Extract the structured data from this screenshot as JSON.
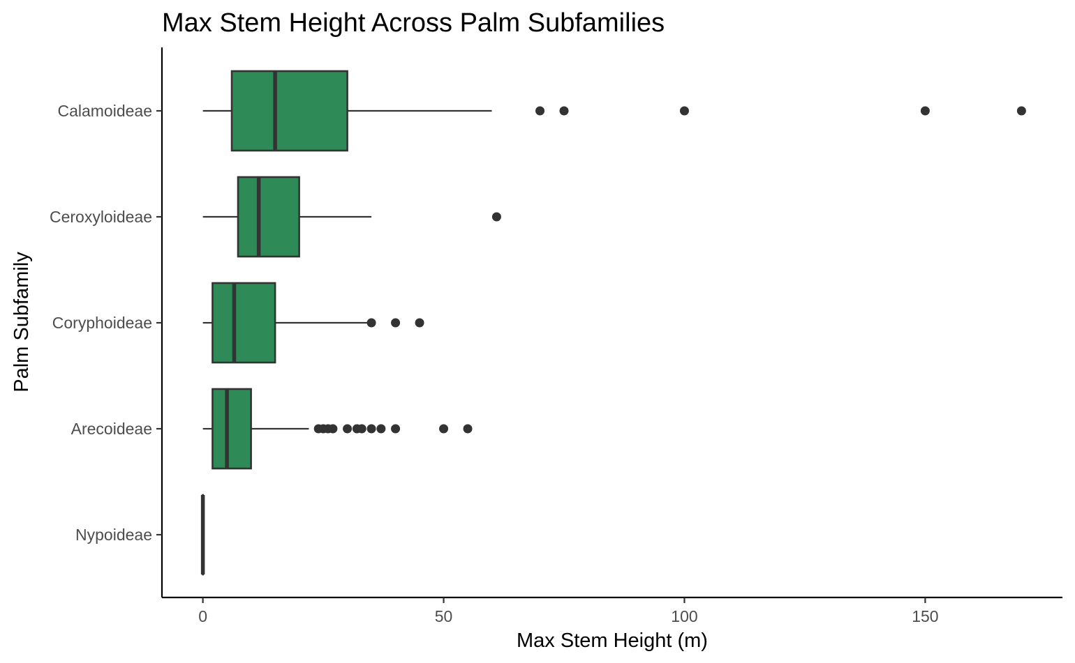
{
  "chart_data": {
    "type": "boxplot",
    "orientation": "horizontal",
    "title": "Max Stem Height Across Palm Subfamilies",
    "xlabel": "Max Stem Height (m)",
    "ylabel": "Palm Subfamily",
    "xlim": [
      -8.5,
      178.5
    ],
    "xticks": [
      0,
      50,
      100,
      150
    ],
    "grid": false,
    "legend": "none",
    "fill_color": "#2e8b57",
    "line_color": "#333333",
    "categories": [
      "Calamoideae",
      "Ceroxyloideae",
      "Coryphoideae",
      "Arecoideae",
      "Nypoideae"
    ],
    "boxes": [
      {
        "category": "Calamoideae",
        "whisker_low": 0,
        "q1": 6,
        "median": 15,
        "q3": 30,
        "whisker_high": 60,
        "outliers": [
          70,
          75,
          100,
          150,
          170
        ]
      },
      {
        "category": "Ceroxyloideae",
        "whisker_low": 0,
        "q1": 7.3,
        "median": 11.6,
        "q3": 20,
        "whisker_high": 35,
        "outliers": [
          61
        ]
      },
      {
        "category": "Coryphoideae",
        "whisker_low": 0,
        "q1": 2,
        "median": 6.5,
        "q3": 15,
        "whisker_high": 35,
        "outliers": [
          35,
          40,
          45
        ]
      },
      {
        "category": "Arecoideae",
        "whisker_low": 0,
        "q1": 2,
        "median": 5,
        "q3": 10,
        "whisker_high": 22,
        "outliers": [
          24,
          25,
          26,
          27,
          30,
          32,
          33,
          35,
          37,
          40,
          50,
          55
        ]
      },
      {
        "category": "Nypoideae",
        "whisker_low": 0,
        "q1": 0,
        "median": 0,
        "q3": 0,
        "whisker_high": 0,
        "outliers": []
      }
    ]
  }
}
